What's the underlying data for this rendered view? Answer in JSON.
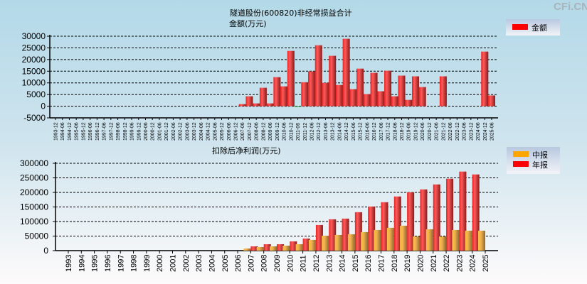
{
  "watermark": "CFi.CN",
  "chart_data": [
    {
      "type": "bar",
      "title": "隧道股份(600820)非经常损益合计",
      "ylabel": "金额(万元)",
      "legend": [
        "金额"
      ],
      "legend_position": "top-right",
      "ylim": [
        -5000,
        30000
      ],
      "yticks": [
        30000,
        25000,
        20000,
        15000,
        10000,
        5000,
        0,
        -5000
      ],
      "grid": true,
      "colors": {
        "金额": "#ff0000",
        "negative": "#2e9e3e"
      },
      "categories": [
        "1993-12",
        "1994-06",
        "1994-12",
        "1995-06",
        "1995-12",
        "1996-06",
        "1996-12",
        "1997-06",
        "1997-12",
        "1998-06",
        "1998-12",
        "1999-06",
        "1999-12",
        "2000-06",
        "2000-12",
        "2001-06",
        "2001-12",
        "2002-06",
        "2002-12",
        "2003-06",
        "2003-12",
        "2004-06",
        "2004-12",
        "2005-06",
        "2005-12",
        "2006-06",
        "2006-12",
        "2007-06",
        "2007-12",
        "2008-06",
        "2008-12",
        "2009-06",
        "2009-12",
        "2010-06",
        "2010-12",
        "2011-06",
        "2011-12",
        "2012-06",
        "2012-12",
        "2013-06",
        "2013-12",
        "2014-06",
        "2014-12",
        "2015-06",
        "2015-12",
        "2016-06",
        "2016-12",
        "2017-06",
        "2017-12",
        "2018-06",
        "2018-12",
        "2019-06",
        "2019-12",
        "2020-06",
        "2020-12",
        "2021-06",
        "2021-12",
        "2022-06",
        "2022-12",
        "2023-06",
        "2023-12",
        "2024-06",
        "2024-12",
        "2025-06"
      ],
      "values": [
        null,
        null,
        null,
        null,
        null,
        null,
        null,
        null,
        null,
        null,
        null,
        null,
        null,
        null,
        null,
        null,
        null,
        null,
        null,
        null,
        null,
        null,
        null,
        null,
        null,
        null,
        null,
        900,
        4250,
        1200,
        7900,
        1200,
        12450,
        8500,
        23700,
        -150,
        10300,
        14900,
        26100,
        10000,
        21600,
        9100,
        28900,
        7300,
        16100,
        5200,
        14300,
        6400,
        15200,
        4250,
        13100,
        2700,
        12800,
        8200,
        null,
        null,
        12800,
        null,
        null,
        null,
        null,
        null,
        23400,
        4600
      ]
    },
    {
      "type": "bar",
      "title": "扣除后净利润(万元)",
      "legend": [
        "中报",
        "年报"
      ],
      "legend_position": "top-right",
      "ylim": [
        0,
        300000
      ],
      "yticks": [
        300000,
        250000,
        200000,
        150000,
        100000,
        50000,
        0
      ],
      "grid": true,
      "colors": {
        "中报": "#ffa500",
        "年报": "#ff0000"
      },
      "categories": [
        "1993",
        "1994",
        "1995",
        "1996",
        "1997",
        "1998",
        "1999",
        "2000",
        "2001",
        "2002",
        "2003",
        "2004",
        "2005",
        "2006",
        "2007",
        "2008",
        "2009",
        "2010",
        "2011",
        "2012",
        "2013",
        "2014",
        "2015",
        "2016",
        "2017",
        "2018",
        "2019",
        "2020",
        "2021",
        "2022",
        "2023",
        "2024",
        "2025"
      ],
      "series": [
        {
          "name": "中报",
          "values": [
            null,
            null,
            null,
            null,
            null,
            null,
            null,
            null,
            null,
            null,
            null,
            null,
            null,
            null,
            7300,
            12200,
            14700,
            17100,
            22000,
            36700,
            51400,
            53800,
            56300,
            63600,
            70900,
            78300,
            85600,
            48900,
            73400,
            48900,
            70900,
            68500,
            68500
          ]
        },
        {
          "name": "年报",
          "values": [
            null,
            null,
            null,
            null,
            null,
            null,
            null,
            null,
            null,
            null,
            null,
            null,
            null,
            null,
            14700,
            22000,
            22000,
            31800,
            41600,
            88000,
            107600,
            110000,
            132000,
            151600,
            166300,
            186000,
            200500,
            210300,
            227400,
            247000,
            271500,
            261700,
            null
          ]
        }
      ]
    }
  ]
}
